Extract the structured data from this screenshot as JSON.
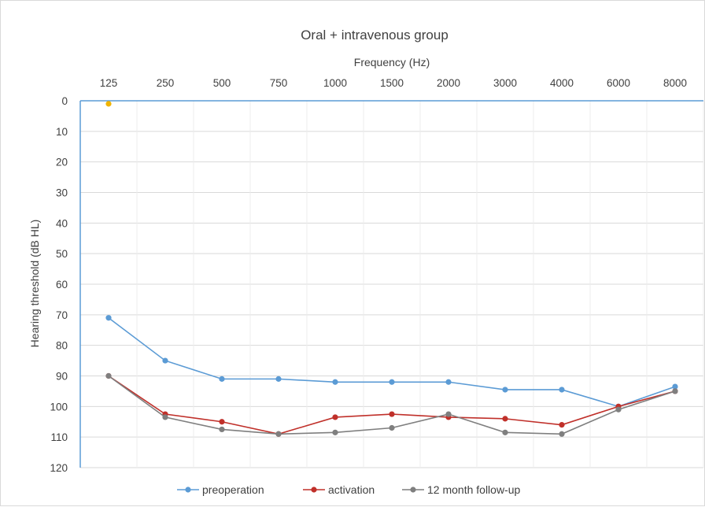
{
  "chart_data": {
    "type": "line",
    "title": "Oral + intravenous group",
    "xlabel": "Frequency (Hz)",
    "ylabel": "Hearing threshold (dB HL)",
    "categories": [
      "125",
      "250",
      "500",
      "750",
      "1000",
      "1500",
      "2000",
      "3000",
      "4000",
      "6000",
      "8000"
    ],
    "y_ticks": [
      "0",
      "10",
      "20",
      "30",
      "40",
      "50",
      "60",
      "70",
      "80",
      "90",
      "100",
      "110",
      "120"
    ],
    "ylim": [
      0,
      120
    ],
    "y_inverted": true,
    "x_axis_position": "top",
    "grid": true,
    "legend_position": "bottom",
    "series": [
      {
        "name": "preoperation",
        "color": "#5b9bd5",
        "values": [
          71,
          85,
          91,
          91,
          92,
          92,
          92,
          94.5,
          94.5,
          100,
          93.5
        ]
      },
      {
        "name": "activation",
        "color": "#c0302a",
        "values": [
          90,
          102.5,
          105,
          109,
          103.5,
          102.5,
          103.5,
          104,
          106,
          100,
          95
        ]
      },
      {
        "name": "12 month follow-up",
        "color": "#7f7f7f",
        "values": [
          90,
          103.5,
          107.5,
          109,
          108.5,
          107,
          102.5,
          108.5,
          109,
          101,
          95
        ]
      }
    ],
    "extra_points": [
      {
        "x": "125",
        "y": 1,
        "color": "#f0b400"
      }
    ]
  }
}
